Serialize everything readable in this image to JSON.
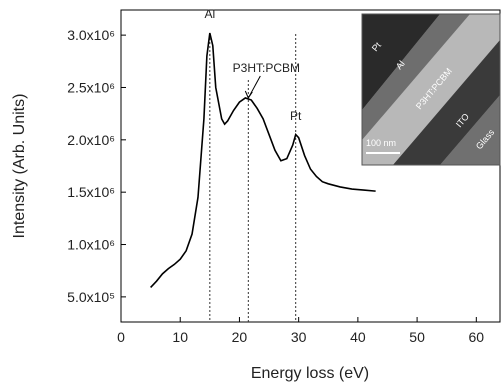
{
  "chart_data": {
    "type": "line",
    "x_label": "Energy loss (eV)",
    "y_label": "Intensity (Arb. Units)",
    "x": [
      5,
      6,
      7,
      8,
      9,
      10,
      11,
      12,
      13,
      14,
      14.5,
      15,
      15.5,
      16,
      17,
      17.5,
      18,
      19,
      20,
      21,
      22,
      23,
      24,
      25,
      26,
      27,
      28,
      29,
      29.5,
      30,
      31,
      32,
      33,
      34,
      35,
      37,
      39,
      41,
      43
    ],
    "values": [
      590000,
      650000,
      720000,
      770000,
      810000,
      860000,
      940000,
      1100000,
      1450000,
      2200000,
      2800000,
      3020000,
      2900000,
      2500000,
      2200000,
      2150000,
      2180000,
      2280000,
      2360000,
      2400000,
      2380000,
      2300000,
      2200000,
      2050000,
      1900000,
      1800000,
      1820000,
      1950000,
      2050000,
      2020000,
      1850000,
      1720000,
      1650000,
      1600000,
      1580000,
      1550000,
      1530000,
      1520000,
      1510000
    ],
    "color": "#000000",
    "xlim": [
      0,
      64
    ],
    "xticks": [
      0,
      10,
      20,
      30,
      40,
      50,
      60
    ],
    "ylim": [
      260000,
      3240000
    ],
    "yticks": [
      {
        "value": 500000,
        "label": "5.0x10⁵"
      },
      {
        "value": 1000000,
        "label": "1.0x10⁶"
      },
      {
        "value": 1500000,
        "label": "1.5x10⁶"
      },
      {
        "value": 2000000,
        "label": "2.0x10⁶"
      },
      {
        "value": 2500000,
        "label": "2.5x10⁶"
      },
      {
        "value": 3000000,
        "label": "3.0x10⁶"
      }
    ],
    "annotations": [
      {
        "text": "Al",
        "x": 15
      },
      {
        "text": "P3HT:PCBM",
        "x": 21.5
      },
      {
        "text": "Pt",
        "x": 29.5
      }
    ],
    "inset": {
      "labels": [
        "Pt",
        "Al",
        "P3HT:PCBM",
        "ITO",
        "Glass",
        "100 nm"
      ]
    }
  }
}
